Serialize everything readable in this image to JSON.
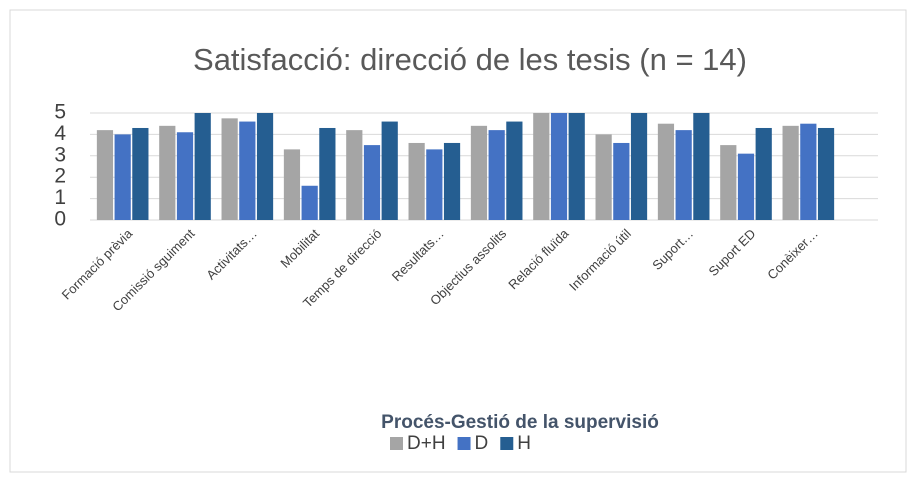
{
  "chart_data": {
    "type": "bar",
    "title": "Satisfacció: direcció de les tesis (n = 14)",
    "x_label": "Procés-Gestió  de la supervisió",
    "categories": [
      "Formació prèvia",
      "Comissió sguiment",
      "Activitats…",
      "Mobilitat",
      "Temps de direcció",
      "Resultats…",
      "Objectius assolits",
      "Relació fluïda",
      "Informació útil",
      "Suport…",
      "Suport ED",
      "Conèixer…"
    ],
    "series": [
      {
        "name": "D+H",
        "color": "#a5a5a5",
        "values": [
          4.2,
          4.4,
          4.75,
          3.3,
          4.2,
          3.6,
          4.4,
          5,
          4.0,
          4.5,
          3.5,
          4.4
        ]
      },
      {
        "name": "D",
        "color": "#4472c4",
        "values": [
          4.0,
          4.1,
          4.6,
          1.6,
          3.5,
          3.3,
          4.2,
          5,
          3.6,
          4.2,
          3.1,
          4.5
        ]
      },
      {
        "name": "H",
        "color": "#255e91",
        "values": [
          4.3,
          5,
          5,
          4.3,
          4.6,
          3.6,
          4.6,
          5,
          5,
          5,
          4.3,
          4.3
        ]
      }
    ],
    "ylim": [
      0,
      5
    ],
    "yticks": [
      0,
      1,
      2,
      3,
      4,
      5
    ],
    "grid": true,
    "legend": "bottom"
  }
}
